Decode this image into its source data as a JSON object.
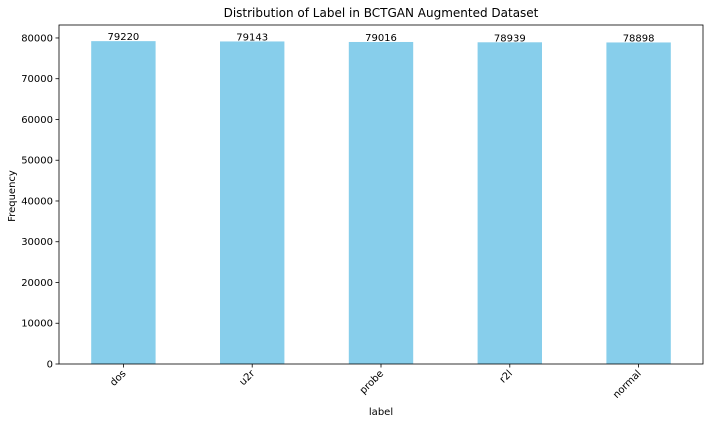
{
  "chart_data": {
    "type": "bar",
    "title": "Distribution of Label in BCTGAN Augmented Dataset",
    "xlabel": "label",
    "ylabel": "Frequency",
    "categories": [
      "dos",
      "u2r",
      "probe",
      "r2l",
      "normal"
    ],
    "values": [
      79220,
      79143,
      79016,
      78939,
      78898
    ],
    "data_labels": [
      "79220",
      "79143",
      "79016",
      "78939",
      "78898"
    ],
    "ylim": [
      0,
      83181
    ],
    "yticks": [
      0,
      10000,
      20000,
      30000,
      40000,
      50000,
      60000,
      70000,
      80000
    ],
    "ytick_labels": [
      "0",
      "10000",
      "20000",
      "30000",
      "40000",
      "50000",
      "60000",
      "70000",
      "80000"
    ],
    "bar_color": "#87ceeb",
    "grid": false,
    "legend": "none",
    "x_tick_rotation": "45 degrees"
  }
}
